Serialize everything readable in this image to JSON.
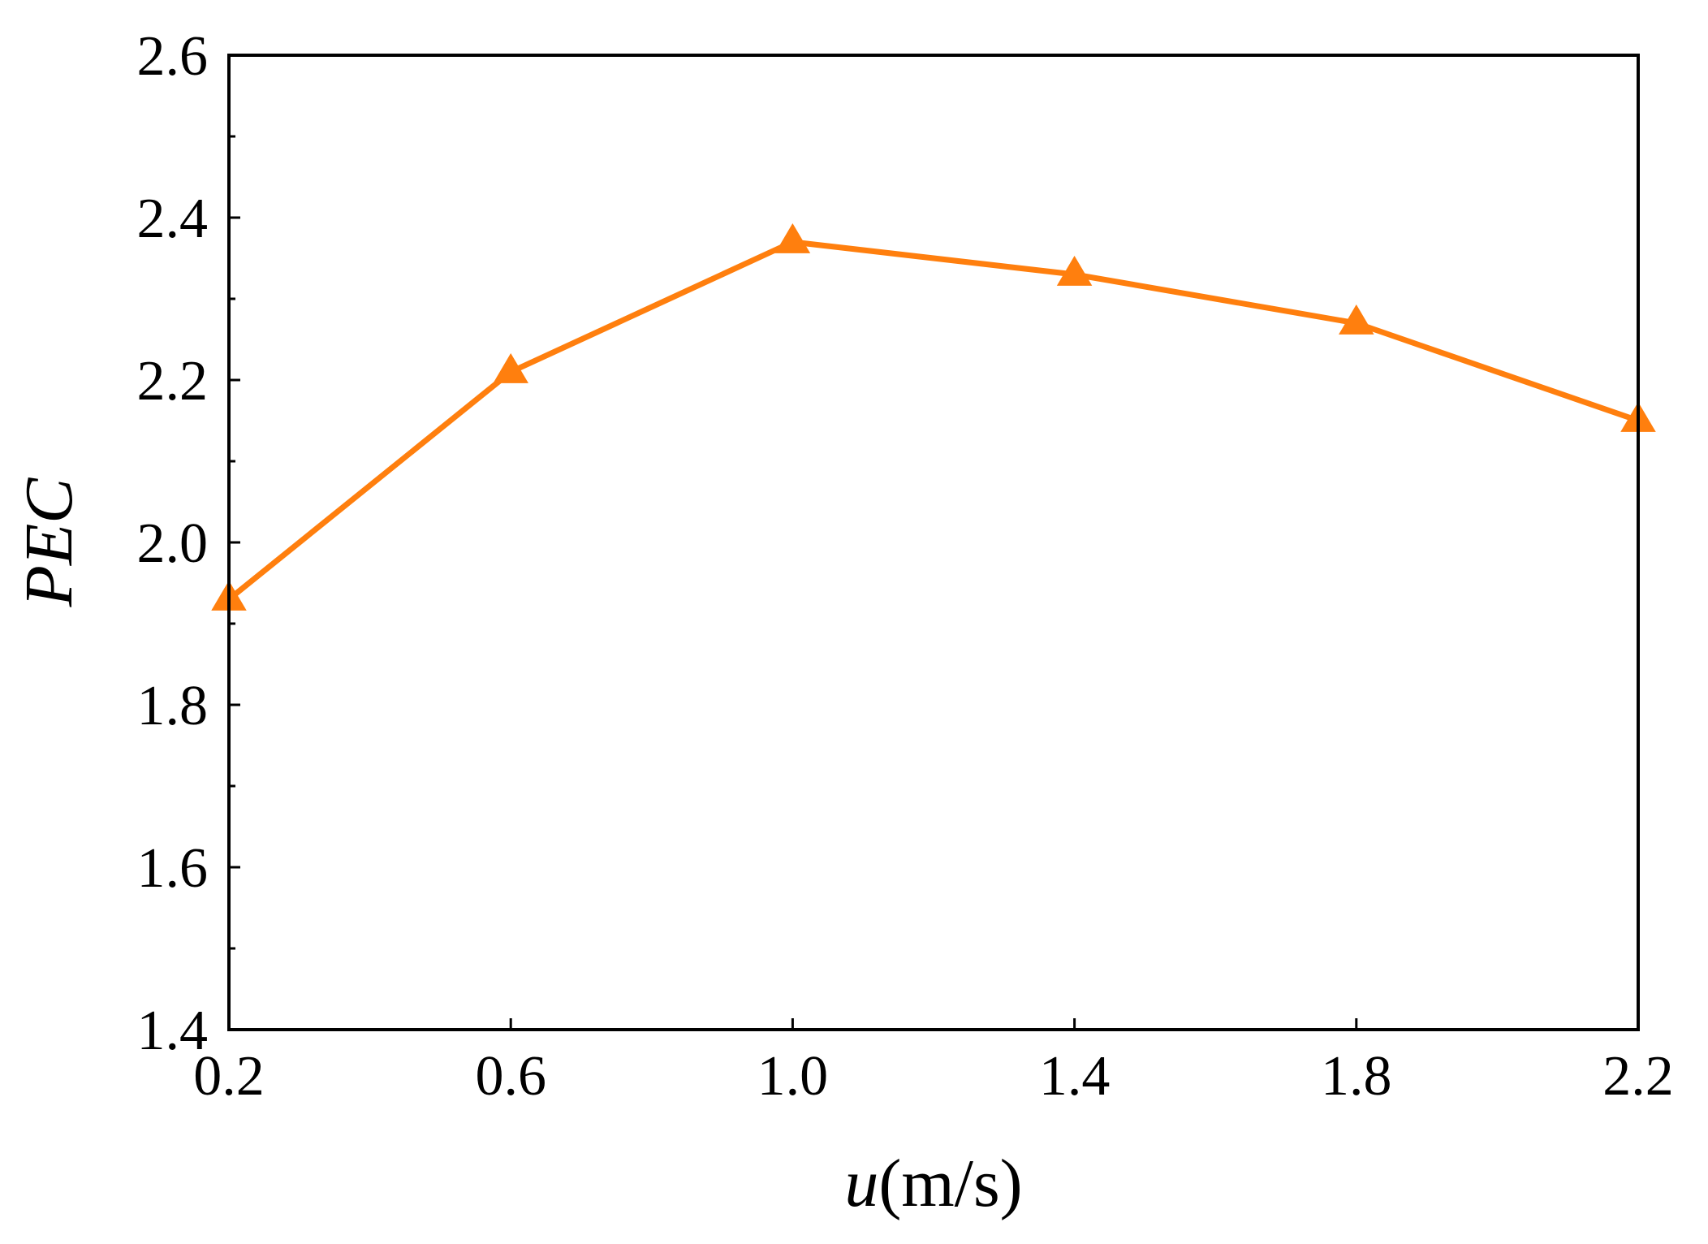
{
  "chart_data": {
    "type": "line",
    "title": "",
    "xlabel": {
      "var": "u",
      "unit": "(m/s)"
    },
    "ylabel": "PEC",
    "xlim": [
      0.2,
      2.2
    ],
    "ylim": [
      1.4,
      2.6
    ],
    "x_ticks": [
      "0.2",
      "0.6",
      "1.0",
      "1.4",
      "1.8",
      "2.2"
    ],
    "y_ticks": [
      "1.4",
      "1.6",
      "1.8",
      "2.0",
      "2.2",
      "2.4",
      "2.6"
    ],
    "grid": false,
    "legend": "none",
    "series": [
      {
        "marker": "triangle",
        "color": "#ff7f0e",
        "x": [
          0.2,
          0.6,
          1.0,
          1.4,
          1.8,
          2.2
        ],
        "y": [
          1.93,
          2.21,
          2.37,
          2.33,
          2.27,
          2.15
        ]
      }
    ]
  }
}
